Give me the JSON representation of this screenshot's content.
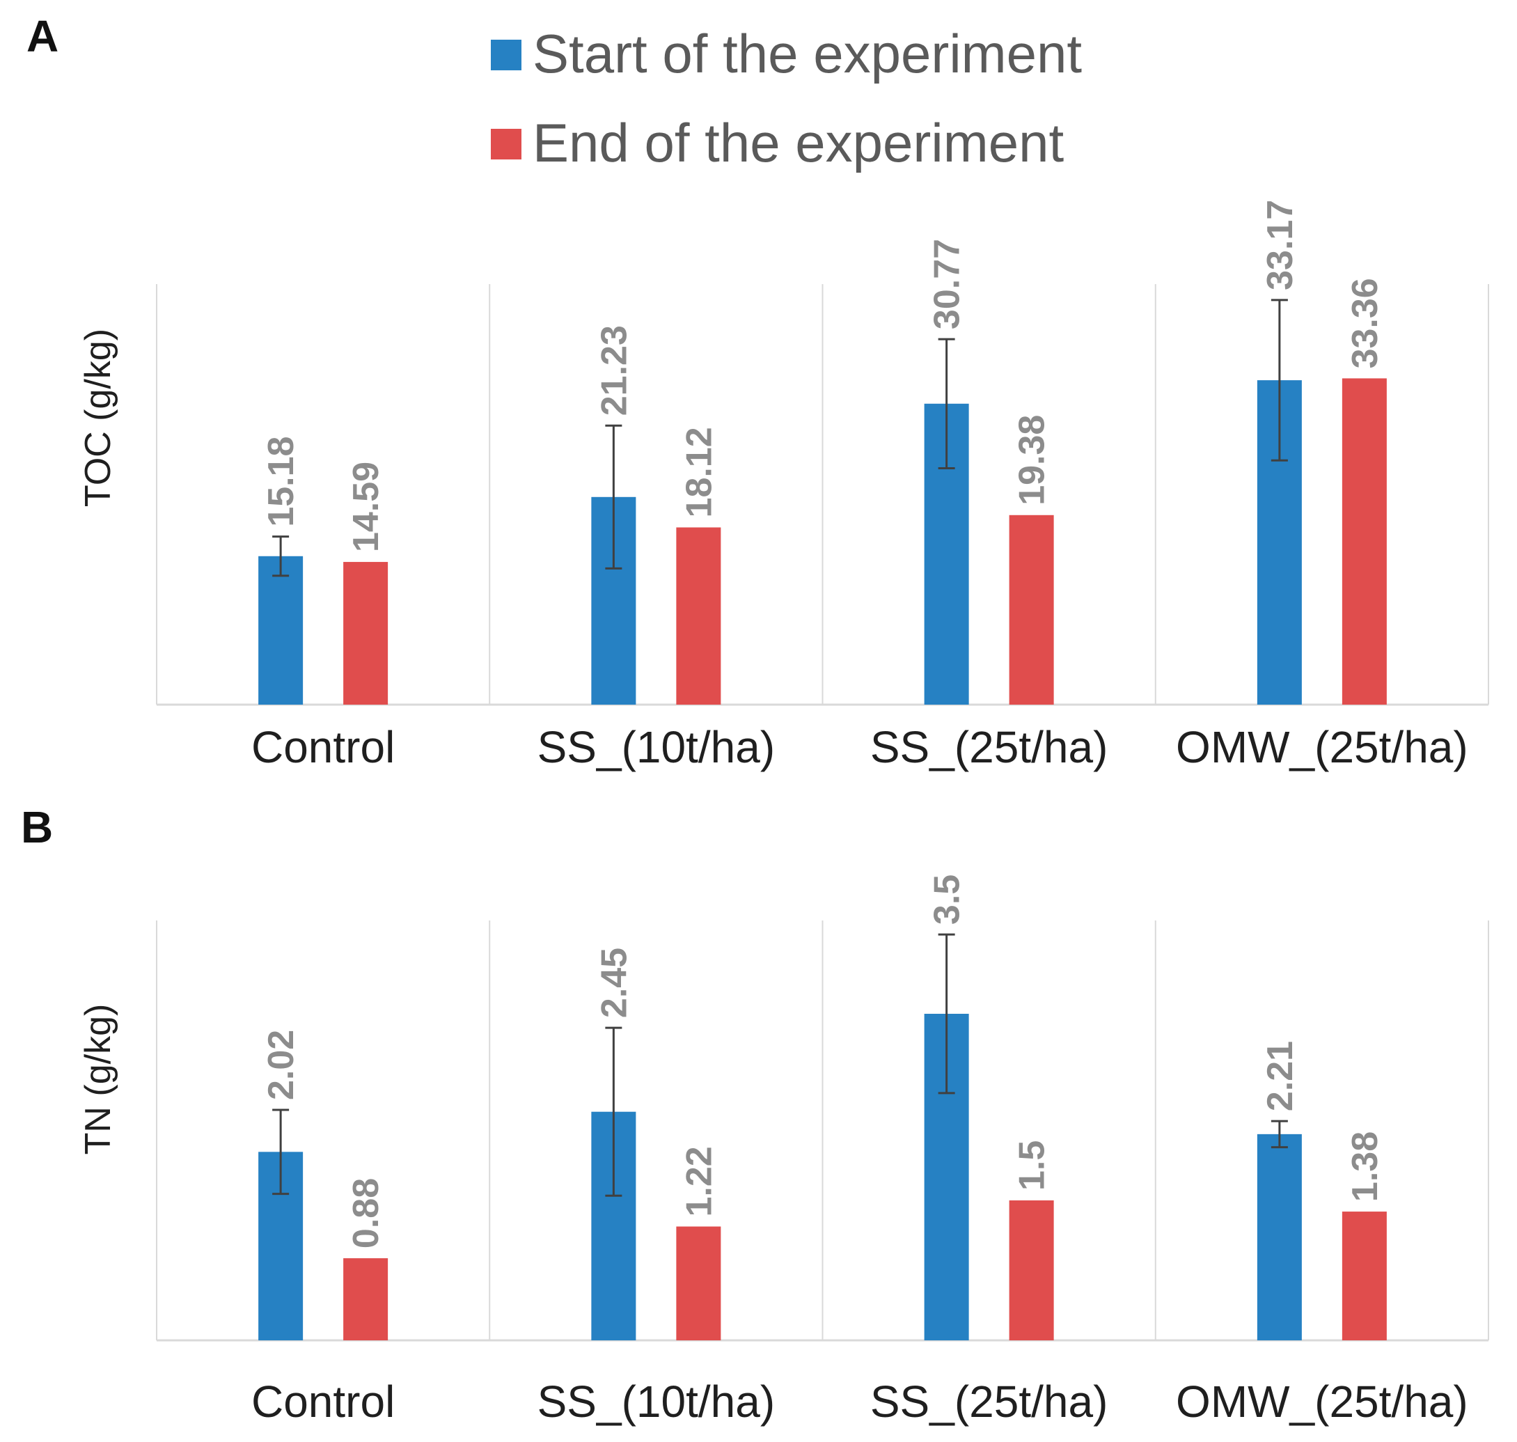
{
  "legend": {
    "series": [
      {
        "name": "Start of the experiment",
        "color": "#2681c3"
      },
      {
        "name": "End of the experiment",
        "color": "#e04d4d"
      }
    ]
  },
  "chart_data": [
    {
      "panel": "A",
      "type": "bar",
      "ylabel": "TOC  (g/kg)",
      "categories": [
        "Control",
        "SS_(10t/ha)",
        "SS_(25t/ha)",
        "OMW_(25t/ha)"
      ],
      "ylim": [
        0,
        43
      ],
      "series": [
        {
          "name": "Start of the experiment",
          "color": "#2681c3",
          "values": [
            15.18,
            21.23,
            30.77,
            33.17
          ],
          "labels": [
            "15.18",
            "21.23",
            "30.77",
            "33.17"
          ],
          "error": [
            2.0,
            7.3,
            6.6,
            8.2
          ]
        },
        {
          "name": "End of the experiment",
          "color": "#e04d4d",
          "values": [
            14.59,
            18.12,
            19.38,
            33.36
          ],
          "labels": [
            "14.59",
            "18.12",
            "19.38",
            "33.36"
          ],
          "error": null
        }
      ]
    },
    {
      "panel": "B",
      "type": "bar",
      "ylabel": "TN  (g/kg)",
      "categories": [
        "Control",
        "SS_(10t/ha)",
        "SS_(25t/ha)",
        "OMW_(25t/ha)"
      ],
      "ylim": [
        0,
        4.5
      ],
      "series": [
        {
          "name": "Start of the experiment",
          "color": "#2681c3",
          "values": [
            2.02,
            2.45,
            3.5,
            2.21
          ],
          "labels": [
            "2.02",
            "2.45",
            "3.5",
            "2.21"
          ],
          "error": [
            0.45,
            0.9,
            0.85,
            0.14
          ]
        },
        {
          "name": "End of the experiment",
          "color": "#e04d4d",
          "values": [
            0.88,
            1.22,
            1.5,
            1.38
          ],
          "labels": [
            "0.88",
            "1.22",
            "1.5",
            "1.38"
          ],
          "error": null
        }
      ]
    }
  ]
}
